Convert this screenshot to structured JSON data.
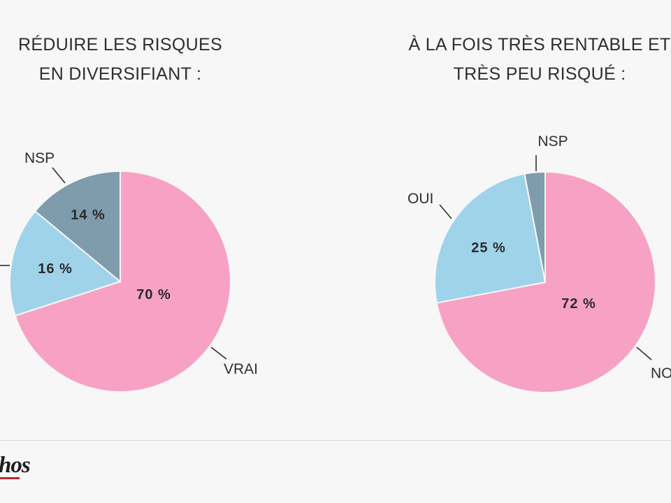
{
  "colors": {
    "pink": "#f7a1c4",
    "blue": "#9fd3ea",
    "slate": "#7f9cad",
    "text": "#2e2e2e"
  },
  "chart_data": [
    {
      "type": "pie",
      "title": [
        "RÉDUIRE LES RISQUES",
        "EN DIVERSIFIANT :"
      ],
      "slices": [
        {
          "label": "VRAI",
          "value": 70,
          "value_label": "70 %",
          "color": "#f7a1c4"
        },
        {
          "label": "",
          "value": 16,
          "value_label": "16 %",
          "color": "#9fd3ea"
        },
        {
          "label": "NSP",
          "value": 14,
          "value_label": "14 %",
          "color": "#7f9cad"
        }
      ]
    },
    {
      "type": "pie",
      "title": [
        "À LA FOIS TRÈS RENTABLE ET",
        "TRÈS PEU RISQUÉ :"
      ],
      "slices": [
        {
          "label": "NO",
          "value": 72,
          "value_label": "72 %",
          "color": "#f7a1c4"
        },
        {
          "label": "OUI",
          "value": 25,
          "value_label": "25 %",
          "color": "#9fd3ea"
        },
        {
          "label": "NSP",
          "value": 3,
          "value_label": "",
          "color": "#7f9cad"
        }
      ]
    }
  ],
  "logo": {
    "text": "hos"
  }
}
